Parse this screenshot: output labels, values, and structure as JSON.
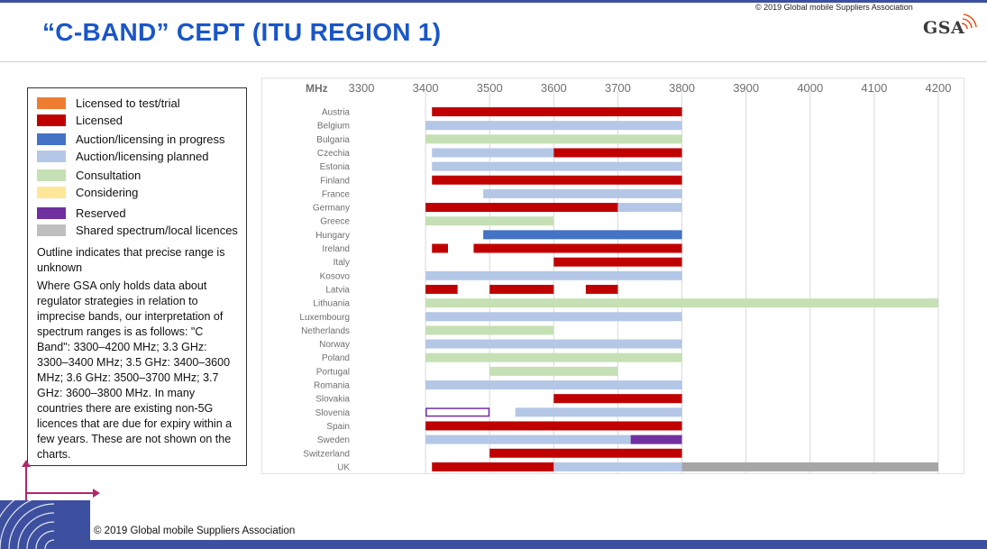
{
  "header": {
    "copyright_top": "© 2019 Global mobile Suppliers Association",
    "title": "“C-BAND” CEPT (ITU REGION 1)",
    "logo_text": "GSA"
  },
  "legend": {
    "items": [
      {
        "label": "Licensed to test/trial",
        "color": "#ed7d31"
      },
      {
        "label": "Licensed",
        "color": "#c00000"
      },
      {
        "label": "Auction/licensing in progress",
        "color": "#4472c4"
      },
      {
        "label": "Auction/licensing planned",
        "color": "#b4c7e7"
      },
      {
        "label": "Consultation",
        "color": "#c5e0b4"
      },
      {
        "label": "Considering",
        "color": "#ffe699"
      },
      {
        "label": "Reserved",
        "color": "#7030a0"
      },
      {
        "label": "Shared spectrum/local licences",
        "color": "#bfbfbf"
      }
    ],
    "note_outline": "Outline indicates that precise range is unknown",
    "note_interpretation": "Where GSA only holds data about regulator strategies in relation to imprecise bands, our interpretation of spectrum ranges is as follows: \"C Band\": 3300–4200 MHz; 3.3 GHz: 3300–3400 MHz; 3.5 GHz: 3400–3600 MHz; 3.6 GHz: 3500–3700 MHz; 3.7 GHz: 3600–3800 MHz. In many countries there are existing non-5G licences that are due for expiry within a few years. These are not shown on the charts."
  },
  "chart_data": {
    "type": "bar",
    "orientation": "horizontal-range",
    "title": "“C-BAND” CEPT (ITU REGION 1)",
    "xlabel": "MHz",
    "xlim": [
      3300,
      4200
    ],
    "xticks": [
      3300,
      3400,
      3500,
      3600,
      3700,
      3800,
      3900,
      4000,
      4100,
      4200
    ],
    "grid": true,
    "axis_position": "top",
    "colors": {
      "licensed": "#c00000",
      "in_progress": "#4472c4",
      "planned": "#b4c7e7",
      "consultation": "#c5e0b4",
      "reserved": "#7030a0",
      "shared": "#a6a6a6"
    },
    "categories": [
      "Austria",
      "Belgium",
      "Bulgaria",
      "Czechia",
      "Estonia",
      "Finland",
      "France",
      "Germany",
      "Greece",
      "Hungary",
      "Ireland",
      "Italy",
      "Kosovo",
      "Latvia",
      "Lithuania",
      "Luxembourg",
      "Netherlands",
      "Norway",
      "Poland",
      "Portugal",
      "Romania",
      "Slovakia",
      "Slovenia",
      "Spain",
      "Sweden",
      "Switzerland",
      "UK"
    ],
    "ranges": [
      [
        {
          "from": 3410,
          "to": 3800,
          "status": "licensed"
        }
      ],
      [
        {
          "from": 3400,
          "to": 3800,
          "status": "planned"
        }
      ],
      [
        {
          "from": 3400,
          "to": 3800,
          "status": "consultation"
        }
      ],
      [
        {
          "from": 3410,
          "to": 3600,
          "status": "planned"
        },
        {
          "from": 3600,
          "to": 3800,
          "status": "licensed"
        }
      ],
      [
        {
          "from": 3410,
          "to": 3800,
          "status": "planned"
        }
      ],
      [
        {
          "from": 3410,
          "to": 3800,
          "status": "licensed"
        }
      ],
      [
        {
          "from": 3490,
          "to": 3800,
          "status": "planned"
        }
      ],
      [
        {
          "from": 3400,
          "to": 3700,
          "status": "licensed"
        },
        {
          "from": 3700,
          "to": 3800,
          "status": "planned"
        }
      ],
      [
        {
          "from": 3400,
          "to": 3600,
          "status": "consultation"
        }
      ],
      [
        {
          "from": 3490,
          "to": 3800,
          "status": "in_progress"
        }
      ],
      [
        {
          "from": 3410,
          "to": 3435,
          "status": "licensed"
        },
        {
          "from": 3475,
          "to": 3800,
          "status": "licensed"
        }
      ],
      [
        {
          "from": 3600,
          "to": 3800,
          "status": "licensed"
        }
      ],
      [
        {
          "from": 3400,
          "to": 3800,
          "status": "planned"
        }
      ],
      [
        {
          "from": 3400,
          "to": 3450,
          "status": "licensed"
        },
        {
          "from": 3500,
          "to": 3600,
          "status": "licensed"
        },
        {
          "from": 3650,
          "to": 3700,
          "status": "licensed"
        }
      ],
      [
        {
          "from": 3400,
          "to": 4200,
          "status": "consultation"
        }
      ],
      [
        {
          "from": 3400,
          "to": 3800,
          "status": "planned"
        }
      ],
      [
        {
          "from": 3400,
          "to": 3600,
          "status": "consultation"
        }
      ],
      [
        {
          "from": 3400,
          "to": 3800,
          "status": "planned"
        }
      ],
      [
        {
          "from": 3400,
          "to": 3800,
          "status": "consultation"
        }
      ],
      [
        {
          "from": 3500,
          "to": 3700,
          "status": "consultation"
        }
      ],
      [
        {
          "from": 3400,
          "to": 3800,
          "status": "planned"
        }
      ],
      [
        {
          "from": 3600,
          "to": 3800,
          "status": "licensed"
        }
      ],
      [
        {
          "from": 3400,
          "to": 3500,
          "status": "reserved",
          "outline": true
        },
        {
          "from": 3540,
          "to": 3800,
          "status": "planned"
        }
      ],
      [
        {
          "from": 3400,
          "to": 3800,
          "status": "licensed"
        }
      ],
      [
        {
          "from": 3400,
          "to": 3720,
          "status": "planned"
        },
        {
          "from": 3720,
          "to": 3800,
          "status": "reserved"
        }
      ],
      [
        {
          "from": 3500,
          "to": 3800,
          "status": "licensed"
        }
      ],
      [
        {
          "from": 3410,
          "to": 3600,
          "status": "licensed"
        },
        {
          "from": 3600,
          "to": 3800,
          "status": "planned"
        },
        {
          "from": 3800,
          "to": 4200,
          "status": "shared"
        }
      ]
    ]
  },
  "footer": {
    "copyright": "© 2019 Global mobile Suppliers Association"
  }
}
